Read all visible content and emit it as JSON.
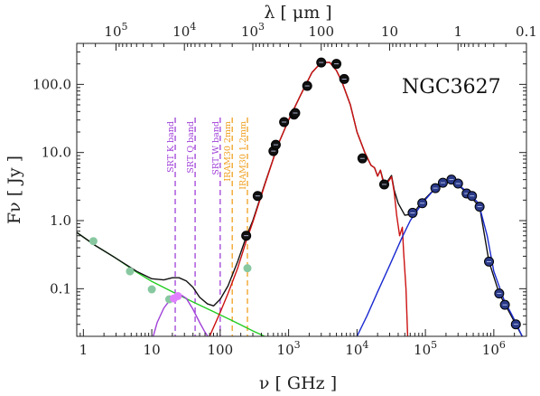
{
  "chart_data": {
    "type": "scatter",
    "title": "",
    "object_name": "NGC3627",
    "xlabel_bottom": "ν [ GHz ]",
    "xlabel_top": "λ [ μm ]",
    "ylabel": "Fν [ Jy ]",
    "x_scale": "log",
    "y_scale": "log",
    "xlim": [
      0.8,
      3000000
    ],
    "ylim": [
      0.02,
      400
    ],
    "grid": false,
    "legend": "none",
    "bottom_ticks": [
      {
        "value": 1,
        "label": "1"
      },
      {
        "value": 10,
        "label": "10"
      },
      {
        "value": 100,
        "label": "100"
      },
      {
        "value": 1000,
        "label": "1000"
      },
      {
        "value": 10000,
        "label": "10000"
      },
      {
        "value": 100000,
        "label": "100000"
      },
      {
        "value": 1000000,
        "label": "1000000"
      }
    ],
    "top_ticks": [
      {
        "value": 100000,
        "label": "100000"
      },
      {
        "value": 10000,
        "label": "10000"
      },
      {
        "value": 1000,
        "label": "1000"
      },
      {
        "value": 100,
        "label": "100"
      },
      {
        "value": 10,
        "label": "10"
      },
      {
        "value": 1,
        "label": "1"
      },
      {
        "value": 0.1,
        "label": "0.1"
      }
    ],
    "y_ticks": [
      {
        "value": 0.1,
        "label": "0.1"
      },
      {
        "value": 1,
        "label": "1.0"
      },
      {
        "value": 10,
        "label": "10.0"
      },
      {
        "value": 100,
        "label": "100.0"
      }
    ],
    "bands": [
      {
        "label": "SRT K band",
        "nu": 22,
        "color": "#a040d8"
      },
      {
        "label": "SRT Q band",
        "nu": 43,
        "color": "#a040d8"
      },
      {
        "label": "SRT W band",
        "nu": 100,
        "color": "#a040d8"
      },
      {
        "label": "IRAM30  2mm",
        "nu": 150,
        "color": "#f0a020"
      },
      {
        "label": "IRAM30  1.2mm",
        "nu": 250,
        "color": "#f0a020"
      }
    ],
    "series": [
      {
        "role": "radio-data",
        "color": "#88c8a0",
        "points": [
          {
            "nu": 1.4,
            "flux": 0.5
          },
          {
            "nu": 4.8,
            "flux": 0.18
          },
          {
            "nu": 10.0,
            "flux": 0.098
          },
          {
            "nu": 18.0,
            "flux": 0.07
          },
          {
            "nu": 250.0,
            "flux": 0.2
          }
        ]
      },
      {
        "role": "srt-data",
        "color": "#e080ff",
        "points": [
          {
            "nu": 21,
            "flux": 0.072
          },
          {
            "nu": 24,
            "flux": 0.078
          }
        ]
      },
      {
        "role": "ir-data",
        "color": "#111111",
        "points": [
          {
            "nu": 240,
            "flux": 0.6
          },
          {
            "nu": 353,
            "flux": 2.3
          },
          {
            "nu": 600,
            "flux": 10.5
          },
          {
            "nu": 650,
            "flux": 13.0
          },
          {
            "nu": 860,
            "flux": 28.0
          },
          {
            "nu": 1200,
            "flux": 36.0
          },
          {
            "nu": 1250,
            "flux": 38.0
          },
          {
            "nu": 1870,
            "flux": 95.0
          },
          {
            "nu": 3000,
            "flux": 210.0
          },
          {
            "nu": 5000,
            "flux": 200.0
          },
          {
            "nu": 6500,
            "flux": 120.0
          },
          {
            "nu": 12000,
            "flux": 8.2
          },
          {
            "nu": 25000,
            "flux": 3.4
          }
        ]
      },
      {
        "role": "stellar-data",
        "color": "#2a3a88",
        "points": [
          {
            "nu": 65000,
            "flux": 1.3
          },
          {
            "nu": 90000,
            "flux": 1.8
          },
          {
            "nu": 140000,
            "flux": 3.0
          },
          {
            "nu": 180000,
            "flux": 3.6
          },
          {
            "nu": 240000,
            "flux": 4.0
          },
          {
            "nu": 300000,
            "flux": 3.5
          },
          {
            "nu": 400000,
            "flux": 2.5
          },
          {
            "nu": 480000,
            "flux": 2.3
          },
          {
            "nu": 620000,
            "flux": 1.6
          },
          {
            "nu": 850000,
            "flux": 0.25
          },
          {
            "nu": 1200000,
            "flux": 0.085
          },
          {
            "nu": 1450000,
            "flux": 0.058
          },
          {
            "nu": 2100000,
            "flux": 0.03
          }
        ]
      }
    ],
    "curves": [
      {
        "role": "synchrotron",
        "color": "#22cc22",
        "points": [
          [
            0.8,
            0.67
          ],
          [
            1.5,
            0.43
          ],
          [
            3,
            0.28
          ],
          [
            6,
            0.175
          ],
          [
            10,
            0.128
          ],
          [
            20,
            0.09
          ],
          [
            40,
            0.064
          ],
          [
            80,
            0.046
          ],
          [
            150,
            0.034
          ],
          [
            300,
            0.024
          ],
          [
            500,
            0.019
          ]
        ]
      },
      {
        "role": "free-free",
        "color": "#a040d8",
        "points": [
          [
            10.5,
            0.02
          ],
          [
            12,
            0.032
          ],
          [
            15,
            0.052
          ],
          [
            20,
            0.076
          ],
          [
            25,
            0.085
          ],
          [
            32,
            0.072
          ],
          [
            40,
            0.05
          ],
          [
            50,
            0.032
          ],
          [
            60,
            0.023
          ],
          [
            66,
            0.02
          ]
        ]
      },
      {
        "role": "total",
        "color": "#111111",
        "points": [
          [
            0.8,
            0.67
          ],
          [
            1.5,
            0.43
          ],
          [
            3,
            0.28
          ],
          [
            6,
            0.18
          ],
          [
            10,
            0.14
          ],
          [
            15,
            0.135
          ],
          [
            20,
            0.145
          ],
          [
            25,
            0.145
          ],
          [
            32,
            0.13
          ],
          [
            40,
            0.105
          ],
          [
            50,
            0.075
          ],
          [
            65,
            0.06
          ],
          [
            80,
            0.056
          ],
          [
            100,
            0.07
          ],
          [
            130,
            0.11
          ],
          [
            180,
            0.25
          ],
          [
            240,
            0.58
          ],
          [
            300,
            1.0
          ],
          [
            450,
            3.5
          ],
          [
            700,
            13
          ],
          [
            1000,
            30
          ],
          [
            1500,
            70
          ],
          [
            2200,
            150
          ],
          [
            3000,
            210
          ],
          [
            4000,
            210
          ],
          [
            5000,
            160
          ],
          [
            6000,
            110
          ],
          [
            8000,
            50
          ],
          [
            10000,
            20
          ],
          [
            13000,
            10
          ],
          [
            16000,
            6.5
          ],
          [
            18000,
            6
          ],
          [
            20000,
            4.5
          ],
          [
            22000,
            5.5
          ],
          [
            24000,
            4.0
          ],
          [
            26000,
            3.4
          ],
          [
            28000,
            3.8
          ],
          [
            32000,
            4.6
          ],
          [
            35000,
            2.8
          ],
          [
            40000,
            1.8
          ],
          [
            50000,
            1.2
          ],
          [
            65000,
            1.25
          ],
          [
            90000,
            1.9
          ],
          [
            140000,
            3.0
          ],
          [
            240000,
            4.0
          ],
          [
            400000,
            2.6
          ],
          [
            620000,
            1.6
          ],
          [
            850000,
            0.25
          ],
          [
            1200000,
            0.085
          ],
          [
            2100000,
            0.03
          ],
          [
            2600000,
            0.02
          ]
        ]
      },
      {
        "role": "dust",
        "color": "#cc1111",
        "points": [
          [
            70,
            0.02
          ],
          [
            100,
            0.045
          ],
          [
            130,
            0.085
          ],
          [
            180,
            0.2
          ],
          [
            240,
            0.5
          ],
          [
            300,
            0.95
          ],
          [
            450,
            3.4
          ],
          [
            700,
            13
          ],
          [
            1000,
            30
          ],
          [
            1500,
            70
          ],
          [
            2200,
            150
          ],
          [
            3000,
            210
          ],
          [
            4000,
            210
          ],
          [
            5000,
            160
          ],
          [
            6000,
            110
          ],
          [
            8000,
            50
          ],
          [
            10000,
            20
          ],
          [
            13000,
            10
          ],
          [
            16000,
            6.5
          ],
          [
            18000,
            6
          ],
          [
            20000,
            4.5
          ],
          [
            22000,
            5.5
          ],
          [
            24000,
            3.8
          ],
          [
            26000,
            3.2
          ],
          [
            28000,
            3.6
          ],
          [
            32000,
            4.4
          ],
          [
            35000,
            2.6
          ],
          [
            38000,
            1.2
          ],
          [
            42000,
            0.6
          ],
          [
            46000,
            0.8
          ],
          [
            48000,
            0.35
          ],
          [
            52000,
            0.1
          ],
          [
            55000,
            0.02
          ]
        ]
      },
      {
        "role": "stellar",
        "color": "#1a2ad0",
        "points": [
          [
            10000,
            0.02
          ],
          [
            14000,
            0.04
          ],
          [
            20000,
            0.09
          ],
          [
            30000,
            0.22
          ],
          [
            45000,
            0.55
          ],
          [
            60000,
            1.0
          ],
          [
            90000,
            1.8
          ],
          [
            140000,
            3.0
          ],
          [
            240000,
            4.0
          ],
          [
            400000,
            2.7
          ],
          [
            600000,
            1.8
          ],
          [
            800000,
            0.6
          ],
          [
            1000000,
            0.18
          ],
          [
            1400000,
            0.07
          ],
          [
            2000000,
            0.035
          ],
          [
            2600000,
            0.02
          ]
        ]
      }
    ]
  }
}
